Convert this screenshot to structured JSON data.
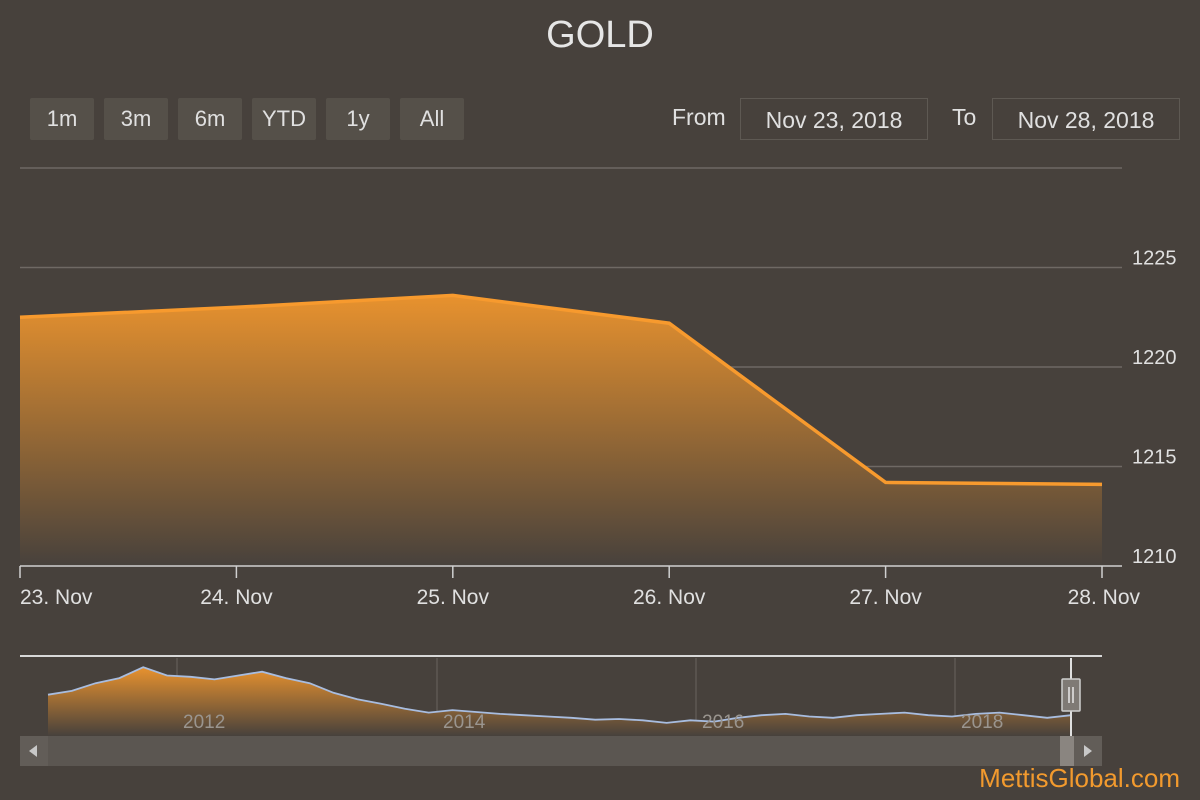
{
  "header": {
    "title": "GOLD"
  },
  "range_selector": {
    "buttons": [
      {
        "label": "1m"
      },
      {
        "label": "3m"
      },
      {
        "label": "6m"
      },
      {
        "label": "YTD"
      },
      {
        "label": "1y"
      },
      {
        "label": "All"
      }
    ],
    "from_label": "From",
    "from_value": "Nov 23, 2018",
    "to_label": "To",
    "to_value": "Nov 28, 2018"
  },
  "chart_data": {
    "type": "area",
    "title": "GOLD",
    "x": [
      "23. Nov",
      "24. Nov",
      "25. Nov",
      "26. Nov",
      "27. Nov",
      "28. Nov"
    ],
    "series": [
      {
        "values": [
          1222.5,
          1223.0,
          1223.6,
          1222.2,
          1214.2,
          1214.1
        ]
      }
    ],
    "y_ticks": [
      1210,
      1215,
      1220,
      1225
    ],
    "ylim": [
      1210,
      1230
    ],
    "grid": true,
    "colors": {
      "line": "#f79a2e",
      "fill_top": "#e8922e",
      "grid": "#6f6964",
      "navigator_line": "#a8bde0"
    }
  },
  "navigator": {
    "x_labels": [
      "2012",
      "2014",
      "2016",
      "2018"
    ]
  },
  "watermark": "MettisGlobal.com"
}
